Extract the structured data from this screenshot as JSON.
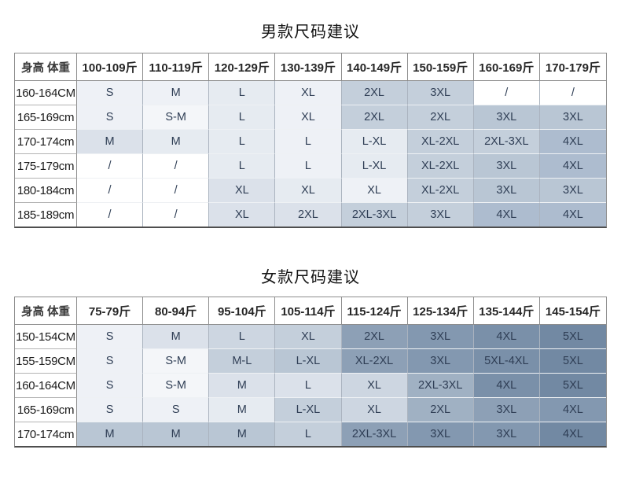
{
  "page": {
    "background": "#ffffff",
    "accent_dark_cell": "#7289a3",
    "accent_light_cell": "#eef1f6",
    "grid_line": "#8d8d8d",
    "cell_text": "#2f3e55"
  },
  "palette": {
    "w": "#ffffff",
    "a0": "#f4f6f9",
    "a1": "#eef1f6",
    "a2": "#e6ebf1",
    "a3": "#dbe1ea",
    "a35": "#cdd6e1",
    "a4": "#c4cfdb",
    "a5": "#b9c6d4",
    "a6": "#adbccf",
    "b1": "#a0b1c3",
    "b2": "#8da0b6",
    "b3": "#8398b0",
    "b4": "#7a90a9",
    "b5": "#7289a3"
  },
  "chart_data": [
    {
      "type": "table",
      "title": "男款尺码建议",
      "corner_label": "身高 体重",
      "col_headers": [
        "100-109斤",
        "110-119斤",
        "120-129斤",
        "130-139斤",
        "140-149斤",
        "150-159斤",
        "160-169斤",
        "170-179斤"
      ],
      "rows": [
        {
          "label": "160-164CM",
          "cells": [
            {
              "t": "S",
              "s": "a1"
            },
            {
              "t": "M",
              "s": "a1"
            },
            {
              "t": "L",
              "s": "a2"
            },
            {
              "t": "XL",
              "s": "a1"
            },
            {
              "t": "2XL",
              "s": "a4"
            },
            {
              "t": "3XL",
              "s": "a4"
            },
            {
              "t": "/",
              "s": "w"
            },
            {
              "t": "/",
              "s": "w"
            }
          ]
        },
        {
          "label": "165-169cm",
          "cells": [
            {
              "t": "S",
              "s": "a1"
            },
            {
              "t": "S-M",
              "s": "a0"
            },
            {
              "t": "L",
              "s": "a2"
            },
            {
              "t": "XL",
              "s": "a1"
            },
            {
              "t": "2XL",
              "s": "a4"
            },
            {
              "t": "2XL",
              "s": "a4"
            },
            {
              "t": "3XL",
              "s": "a5"
            },
            {
              "t": "3XL",
              "s": "a5"
            }
          ]
        },
        {
          "label": "170-174cm",
          "cells": [
            {
              "t": "M",
              "s": "a3"
            },
            {
              "t": "M",
              "s": "a2"
            },
            {
              "t": "L",
              "s": "a2"
            },
            {
              "t": "L",
              "s": "a1"
            },
            {
              "t": "L-XL",
              "s": "a2"
            },
            {
              "t": "XL-2XL",
              "s": "a4"
            },
            {
              "t": "2XL-3XL",
              "s": "a4"
            },
            {
              "t": "4XL",
              "s": "a6"
            }
          ]
        },
        {
          "label": "175-179cm",
          "cells": [
            {
              "t": "/",
              "s": "w"
            },
            {
              "t": "/",
              "s": "w"
            },
            {
              "t": "L",
              "s": "a2"
            },
            {
              "t": "L",
              "s": "a1"
            },
            {
              "t": "L-XL",
              "s": "a2"
            },
            {
              "t": "XL-2XL",
              "s": "a4"
            },
            {
              "t": "3XL",
              "s": "a5"
            },
            {
              "t": "4XL",
              "s": "a6"
            }
          ]
        },
        {
          "label": "180-184cm",
          "cells": [
            {
              "t": "/",
              "s": "w"
            },
            {
              "t": "/",
              "s": "w"
            },
            {
              "t": "XL",
              "s": "a3"
            },
            {
              "t": "XL",
              "s": "a2"
            },
            {
              "t": "XL",
              "s": "a1"
            },
            {
              "t": "XL-2XL",
              "s": "a4"
            },
            {
              "t": "3XL",
              "s": "a5"
            },
            {
              "t": "3XL",
              "s": "a5"
            }
          ]
        },
        {
          "label": "185-189cm",
          "cells": [
            {
              "t": "/",
              "s": "w"
            },
            {
              "t": "/",
              "s": "w"
            },
            {
              "t": "XL",
              "s": "a3"
            },
            {
              "t": "2XL",
              "s": "a3"
            },
            {
              "t": "2XL-3XL",
              "s": "a4"
            },
            {
              "t": "3XL",
              "s": "a4"
            },
            {
              "t": "4XL",
              "s": "a6"
            },
            {
              "t": "4XL",
              "s": "a6"
            }
          ]
        }
      ]
    },
    {
      "type": "table",
      "title": "女款尺码建议",
      "corner_label": "身高 体重",
      "col_headers": [
        "75-79斤",
        "80-94斤",
        "95-104斤",
        "105-114斤",
        "115-124斤",
        "125-134斤",
        "135-144斤",
        "145-154斤"
      ],
      "rows": [
        {
          "label": "150-154CM",
          "cells": [
            {
              "t": "S",
              "s": "a1"
            },
            {
              "t": "M",
              "s": "a3"
            },
            {
              "t": "L",
              "s": "a35"
            },
            {
              "t": "XL",
              "s": "a4"
            },
            {
              "t": "2XL",
              "s": "b2"
            },
            {
              "t": "3XL",
              "s": "b3"
            },
            {
              "t": "4XL",
              "s": "b4"
            },
            {
              "t": "5XL",
              "s": "b5"
            }
          ]
        },
        {
          "label": "155-159CM",
          "cells": [
            {
              "t": "S",
              "s": "a1"
            },
            {
              "t": "S-M",
              "s": "a0"
            },
            {
              "t": "M-L",
              "s": "a4"
            },
            {
              "t": "L-XL",
              "s": "a5"
            },
            {
              "t": "XL-2XL",
              "s": "b2"
            },
            {
              "t": "3XL",
              "s": "b3"
            },
            {
              "t": "5XL-4XL",
              "s": "b4"
            },
            {
              "t": "5XL",
              "s": "b5"
            }
          ]
        },
        {
          "label": "160-164CM",
          "cells": [
            {
              "t": "S",
              "s": "a1"
            },
            {
              "t": "S-M",
              "s": "a0"
            },
            {
              "t": "M",
              "s": "a3"
            },
            {
              "t": "L",
              "s": "a3"
            },
            {
              "t": "XL",
              "s": "a35"
            },
            {
              "t": "2XL-3XL",
              "s": "b1"
            },
            {
              "t": "4XL",
              "s": "b4"
            },
            {
              "t": "5XL",
              "s": "b5"
            }
          ]
        },
        {
          "label": "165-169cm",
          "cells": [
            {
              "t": "S",
              "s": "a1"
            },
            {
              "t": "S",
              "s": "a1"
            },
            {
              "t": "M",
              "s": "a2"
            },
            {
              "t": "L-XL",
              "s": "a4"
            },
            {
              "t": "XL",
              "s": "a35"
            },
            {
              "t": "2XL",
              "s": "b1"
            },
            {
              "t": "3XL",
              "s": "b2"
            },
            {
              "t": "4XL",
              "s": "b3"
            }
          ]
        },
        {
          "label": "170-174cm",
          "cells": [
            {
              "t": "M",
              "s": "a5"
            },
            {
              "t": "M",
              "s": "a5"
            },
            {
              "t": "M",
              "s": "a5"
            },
            {
              "t": "L",
              "s": "a4"
            },
            {
              "t": "2XL-3XL",
              "s": "b2"
            },
            {
              "t": "3XL",
              "s": "b3"
            },
            {
              "t": "3XL",
              "s": "b3"
            },
            {
              "t": "4XL",
              "s": "b5"
            }
          ]
        }
      ]
    }
  ]
}
